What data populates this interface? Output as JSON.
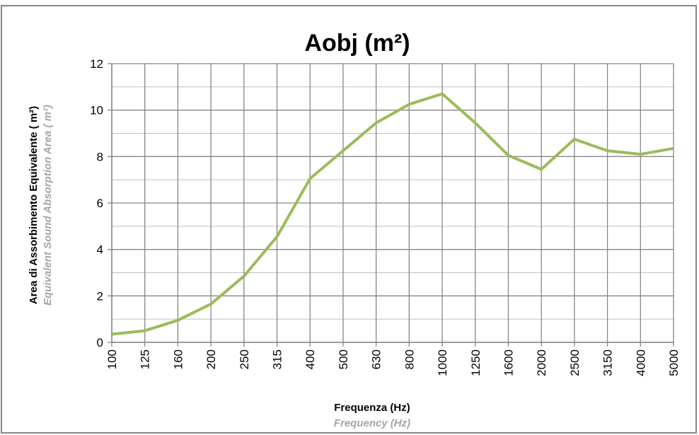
{
  "chart_data": {
    "type": "line",
    "title": "Aobj (m²)",
    "y_label": "Area di Assorbimento Equivalente ( m²)",
    "y_label_secondary": "Equivalent Sound Absorption  Area ( m²)",
    "x_label": "Frequenza (Hz)",
    "x_label_secondary": "Frequency (Hz)",
    "categories": [
      "100",
      "125",
      "160",
      "200",
      "250",
      "315",
      "400",
      "500",
      "630",
      "800",
      "1000",
      "1250",
      "1600",
      "2000",
      "2500",
      "3150",
      "4000",
      "5000"
    ],
    "series": [
      {
        "name": "Aobj",
        "color": "#9bbb59",
        "values": [
          0.35,
          0.5,
          0.95,
          1.65,
          2.85,
          4.55,
          7.05,
          8.25,
          9.45,
          10.25,
          10.7,
          9.45,
          8.05,
          7.45,
          8.75,
          8.25,
          8.1,
          8.35
        ]
      }
    ],
    "ylim": [
      0,
      12
    ],
    "yticks": [
      0,
      2,
      4,
      6,
      8,
      10,
      12
    ],
    "yminor_ticks": [
      1,
      3,
      5,
      7,
      9,
      11
    ],
    "grid": true,
    "legend": false
  }
}
